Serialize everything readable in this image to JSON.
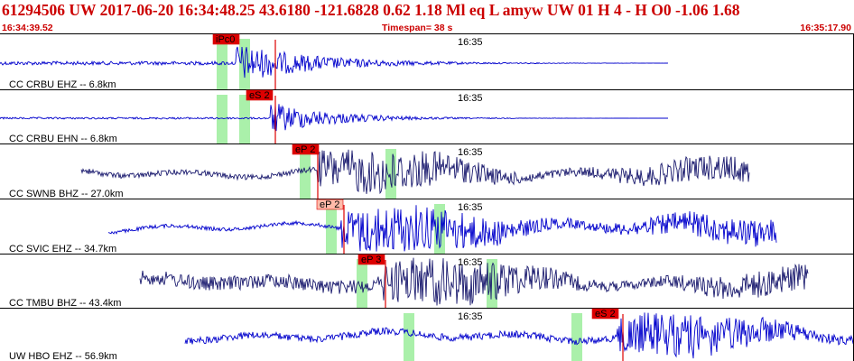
{
  "header": {
    "title": "61294506 UW 2017-06-20 16:34:48.25   43.6180 -121.6828   0.62  1.18 Ml  eq  L amyw     UW 01  H   4  -  H O0   -1.06  1.68",
    "start_time": "16:34:39.52",
    "timespan_label": "Timespan=  38 s",
    "end_time": "16:35:17.90"
  },
  "colors": {
    "header_text": "#cc0000",
    "trace": "#0000cc",
    "trace_dark": "#1a1a6e",
    "window": "#aaf0aa",
    "pick_box": "#dd0000",
    "pick_box_light": "#ffbbaa",
    "divider": "#000000"
  },
  "panels": [
    {
      "station": "CC CRBU EHZ -- 6.8km",
      "time_tick": "16:35",
      "pick_label": "iPc0",
      "pick_style": "dark",
      "trace_color": "trace"
    },
    {
      "station": "CC CRBU EHN -- 6.8km",
      "time_tick": "16:35",
      "pick_label": "eS 2",
      "pick_style": "dark",
      "trace_color": "trace"
    },
    {
      "station": "CC SWNB BHZ -- 27.0km",
      "time_tick": "16:35",
      "pick_label": "eP 2",
      "pick_style": "dark",
      "trace_color": "trace_dark"
    },
    {
      "station": "CC SVIC EHZ -- 34.7km",
      "time_tick": "16:35",
      "pick_label": "eP 2",
      "pick_style": "light",
      "trace_color": "trace"
    },
    {
      "station": "CC TMBU BHZ -- 43.4km",
      "time_tick": "16:35",
      "pick_label": "eP 3",
      "pick_style": "dark",
      "trace_color": "trace_dark"
    },
    {
      "station": "UW HBO EHZ -- 56.9km",
      "time_tick": "16:35",
      "pick_label": "eS 2",
      "pick_style": "dark",
      "trace_color": "trace"
    }
  ]
}
